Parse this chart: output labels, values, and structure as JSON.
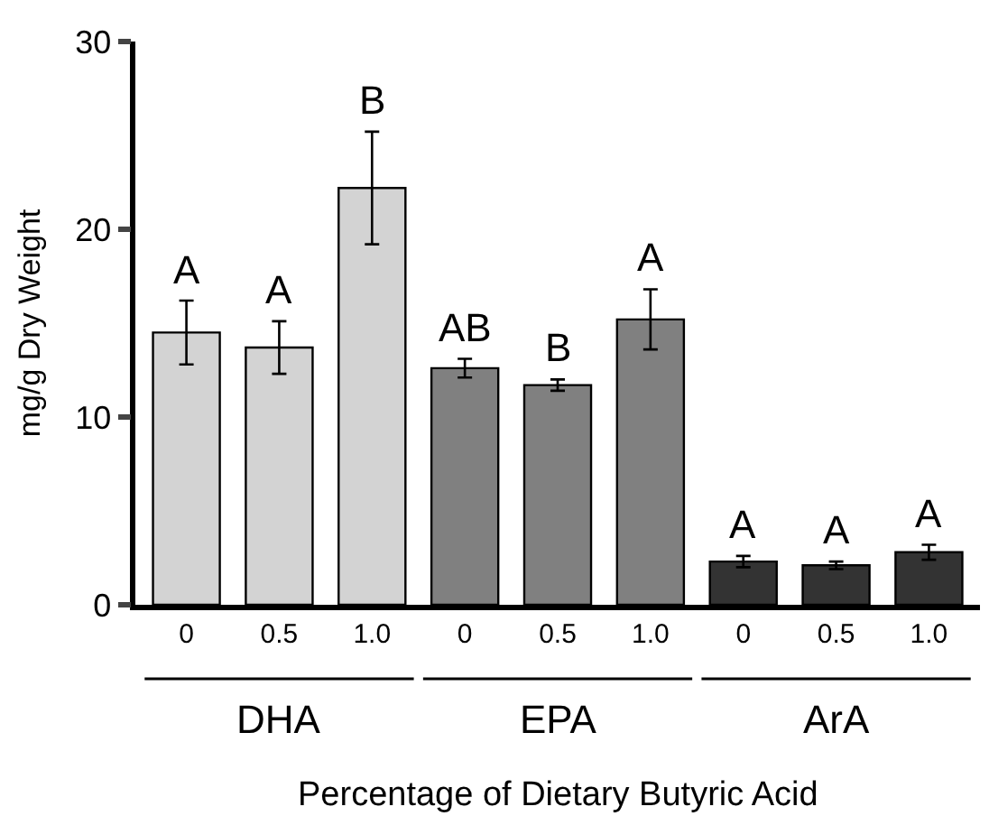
{
  "chart_data": {
    "type": "bar",
    "ylabel": "mg/g Dry Weight",
    "xlabel": "Percentage of Dietary Butyric Acid",
    "categories": [
      "0",
      "0.5",
      "1.0",
      "0",
      "0.5",
      "1.0",
      "0",
      "0.5",
      "1.0"
    ],
    "series": [
      {
        "name": "DHA",
        "color": "#d3d3d3",
        "values": [
          14.5,
          13.7,
          22.2,
          null,
          null,
          null,
          null,
          null,
          null
        ],
        "errors": [
          1.7,
          1.4,
          3.0,
          null,
          null,
          null,
          null,
          null,
          null
        ],
        "value_labels": [
          "A",
          "A",
          "B",
          null,
          null,
          null,
          null,
          null,
          null
        ]
      },
      {
        "name": "EPA",
        "color": "#808080",
        "values": [
          null,
          null,
          null,
          12.6,
          11.7,
          15.2,
          null,
          null,
          null
        ],
        "errors": [
          null,
          null,
          null,
          0.5,
          0.3,
          1.6,
          null,
          null,
          null
        ],
        "value_labels": [
          null,
          null,
          null,
          "AB",
          "B",
          "A",
          null,
          null,
          null
        ]
      },
      {
        "name": "ArA",
        "color": "#333333",
        "values": [
          null,
          null,
          null,
          null,
          null,
          null,
          2.3,
          2.1,
          2.8
        ],
        "errors": [
          null,
          null,
          null,
          null,
          null,
          null,
          0.3,
          0.2,
          0.4
        ],
        "value_labels": [
          null,
          null,
          null,
          null,
          null,
          null,
          "A",
          "A",
          "A"
        ]
      }
    ],
    "ylim": [
      0,
      30
    ],
    "yticks": [
      0,
      10,
      20,
      30
    ],
    "legend": false
  }
}
